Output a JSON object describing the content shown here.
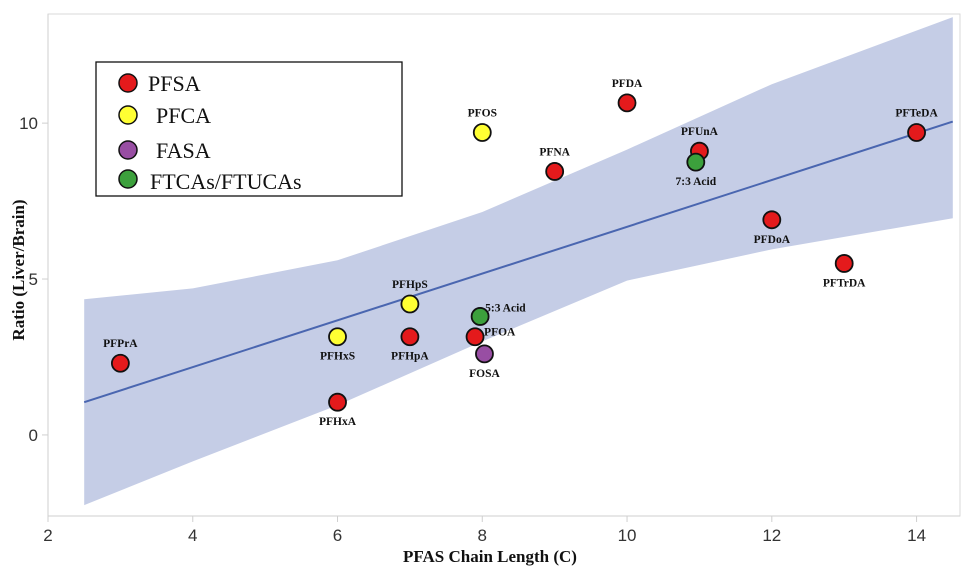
{
  "chart_data": {
    "type": "scatter",
    "xlabel": "PFAS Chain Length (C)",
    "ylabel": "Ratio (Liver/Brain)",
    "xlim": [
      2,
      14.6
    ],
    "ylim": [
      -2.6,
      13.5
    ],
    "xticks": [
      2,
      4,
      6,
      8,
      10,
      12,
      14
    ],
    "yticks": [
      0,
      5,
      10
    ],
    "legend_placement": "top-left",
    "categories": [
      {
        "key": "PFSA",
        "name": "PFSA",
        "color": "#e41a1c"
      },
      {
        "key": "PFCA",
        "name": "PFCA",
        "color": "#ffff33"
      },
      {
        "key": "FASA",
        "name": "FASA",
        "color": "#984ea3"
      },
      {
        "key": "FTCA",
        "name": "FTCAs/FTUCAs",
        "color": "#3ca03c"
      }
    ],
    "points": [
      {
        "label": "PFPrA",
        "x": 3,
        "y": 2.3,
        "cat": "PFSA",
        "lpos": "above"
      },
      {
        "label": "PFHxA",
        "x": 6,
        "y": 1.05,
        "cat": "PFSA",
        "lpos": "below"
      },
      {
        "label": "PFHxS",
        "x": 6,
        "y": 3.15,
        "cat": "PFCA",
        "lpos": "below"
      },
      {
        "label": "PFHpS",
        "x": 7,
        "y": 4.2,
        "cat": "PFCA",
        "lpos": "above"
      },
      {
        "label": "PFHpA",
        "x": 7,
        "y": 3.15,
        "cat": "PFSA",
        "lpos": "below"
      },
      {
        "label": "PFOA",
        "x": 7.9,
        "y": 3.15,
        "cat": "PFSA",
        "lpos": "right"
      },
      {
        "label": "FOSA",
        "x": 8.03,
        "y": 2.6,
        "cat": "FASA",
        "lpos": "below"
      },
      {
        "label": "5:3 Acid",
        "x": 7.97,
        "y": 3.8,
        "cat": "FTCA",
        "lpos": "upright"
      },
      {
        "label": "PFOS",
        "x": 8,
        "y": 9.7,
        "cat": "PFCA",
        "lpos": "above"
      },
      {
        "label": "PFNA",
        "x": 9,
        "y": 8.45,
        "cat": "PFSA",
        "lpos": "above"
      },
      {
        "label": "PFDA",
        "x": 10,
        "y": 10.65,
        "cat": "PFSA",
        "lpos": "above"
      },
      {
        "label": "PFUnA",
        "x": 11,
        "y": 9.1,
        "cat": "PFSA",
        "lpos": "above"
      },
      {
        "label": "7:3 Acid",
        "x": 10.95,
        "y": 8.75,
        "cat": "FTCA",
        "lpos": "below"
      },
      {
        "label": "PFDoA",
        "x": 12,
        "y": 6.9,
        "cat": "PFSA",
        "lpos": "below"
      },
      {
        "label": "PFTrDA",
        "x": 13,
        "y": 5.5,
        "cat": "PFSA",
        "lpos": "below"
      },
      {
        "label": "PFTeDA",
        "x": 14,
        "y": 9.7,
        "cat": "PFSA",
        "lpos": "above"
      }
    ],
    "fit_line": {
      "x": [
        2.5,
        14.5
      ],
      "y": [
        1.05,
        10.05
      ],
      "color": "#4a66b0"
    },
    "confidence_band": {
      "x": [
        2.5,
        4,
        6,
        8,
        10,
        12,
        14.5
      ],
      "upper": [
        4.35,
        4.7,
        5.6,
        7.15,
        9.15,
        11.25,
        13.4
      ],
      "lower": [
        -2.25,
        -0.85,
        0.95,
        3.0,
        4.95,
        5.95,
        6.95
      ],
      "color": "#c5cde6"
    }
  }
}
